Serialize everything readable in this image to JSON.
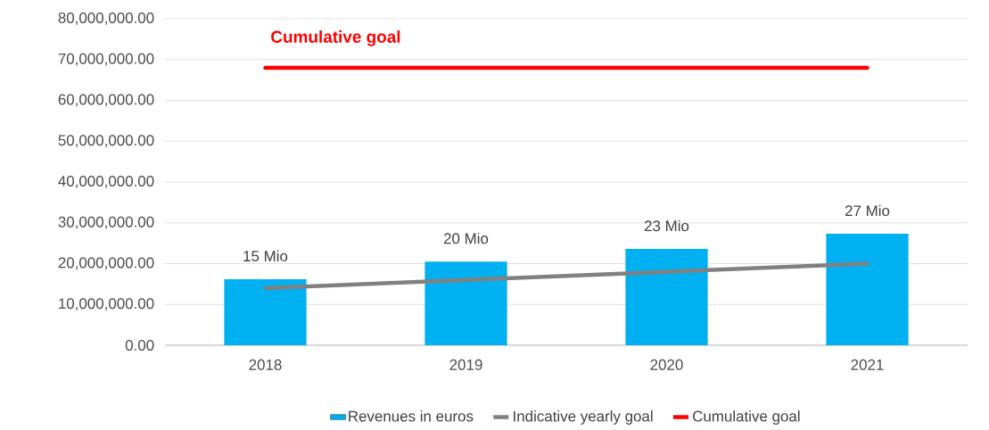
{
  "chart_data": {
    "type": "bar",
    "categories": [
      "2018",
      "2019",
      "2020",
      "2021"
    ],
    "series": [
      {
        "name": "Revenues in euros",
        "color": "#00b0f0",
        "values": [
          16200000,
          20500000,
          23600000,
          27300000
        ]
      },
      {
        "name": "Indicative yearly goal",
        "type": "line",
        "color": "#808080",
        "values": [
          14000000,
          16000000,
          18000000,
          20000000
        ]
      },
      {
        "name": "Cumulative goal",
        "type": "line",
        "color": "#ff0000",
        "values": [
          68000000,
          68000000,
          68000000,
          68000000
        ]
      }
    ],
    "ylim": [
      0,
      80000000
    ],
    "yticks": [
      {
        "value": 0,
        "label": "0.00"
      },
      {
        "value": 10000000,
        "label": "10,000,000.00"
      },
      {
        "value": 20000000,
        "label": "20,000,000.00"
      },
      {
        "value": 30000000,
        "label": "30,000,000.00"
      },
      {
        "value": 40000000,
        "label": "40,000,000.00"
      },
      {
        "value": 50000000,
        "label": "50,000,000.00"
      },
      {
        "value": 60000000,
        "label": "60,000,000.00"
      },
      {
        "value": 70000000,
        "label": "70,000,000.00"
      },
      {
        "value": 80000000,
        "label": "80,000,000.00"
      }
    ],
    "annotations": [
      "Cumulative goal",
      {
        "text": "15 Mio",
        "x": "2018",
        "y": 16200000
      },
      {
        "text": "20 Mio",
        "x": "2019",
        "y": 20500000
      },
      {
        "text": "23 Mio",
        "x": "2020",
        "y": 23600000
      },
      {
        "text": "27 Mio",
        "x": "2021",
        "y": 27300000
      }
    ],
    "grid": "y",
    "legend": "bottom",
    "marker": "none",
    "line_style": "solid"
  }
}
